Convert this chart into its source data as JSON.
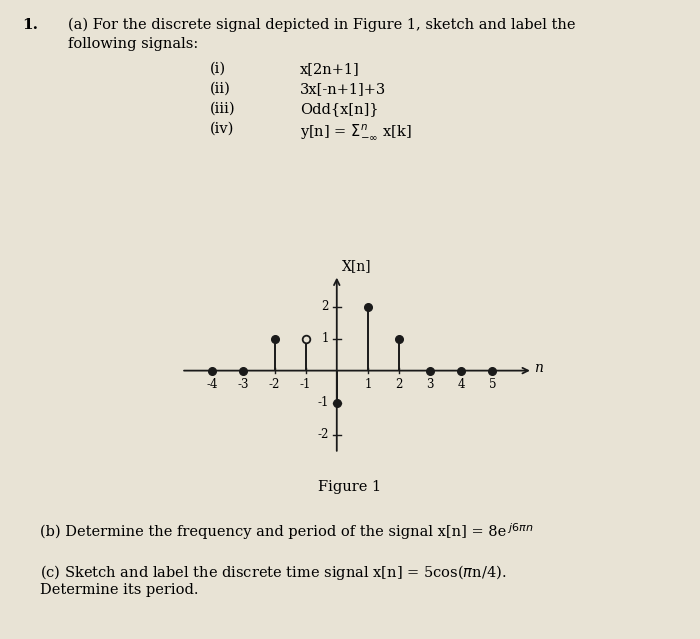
{
  "n_values": [
    -4,
    -3,
    -2,
    -1,
    0,
    1,
    2,
    3,
    4,
    5
  ],
  "x_values": [
    0,
    0,
    1,
    1,
    -1,
    2,
    1,
    0,
    0,
    0
  ],
  "open_dots": [
    -1
  ],
  "bg_color": "#e8e3d5",
  "line_color": "#1a1a1a",
  "dot_fill_color": "#1a1a1a",
  "dot_open_color": "#e8e3d5",
  "stem_linewidth": 1.4,
  "dot_markersize": 5.5,
  "tick_fontsize": 9,
  "label_fontsize": 11
}
